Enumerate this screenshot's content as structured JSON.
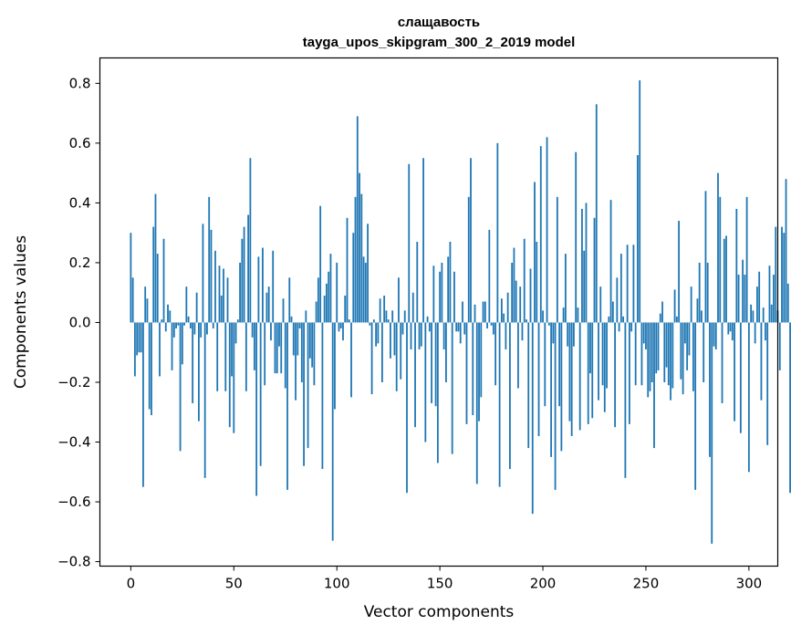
{
  "chart_data": {
    "type": "bar",
    "title": "слащавость",
    "subtitle": "tayga_upos_skipgram_300_2_2019 model",
    "xlabel": "Vector components",
    "ylabel": "Components values",
    "xlim": [
      -15,
      314
    ],
    "ylim": [
      -0.815,
      0.885
    ],
    "xticks": [
      0,
      50,
      100,
      150,
      200,
      250,
      300
    ],
    "yticks": [
      -0.8,
      -0.6,
      -0.4,
      -0.2,
      0.0,
      0.2,
      0.4,
      0.6,
      0.8
    ],
    "ytick_labels": [
      "−0.8",
      "−0.6",
      "−0.4",
      "−0.2",
      "0.0",
      "0.2",
      "0.4",
      "0.6",
      "0.8"
    ],
    "xtick_labels": [
      "0",
      "50",
      "100",
      "150",
      "200",
      "250",
      "300"
    ],
    "bar_color": "#1f77b4",
    "values": [
      0.3,
      0.15,
      -0.18,
      -0.11,
      -0.1,
      -0.1,
      -0.55,
      0.12,
      0.08,
      -0.29,
      -0.31,
      0.32,
      0.43,
      0.23,
      -0.18,
      0.01,
      0.28,
      -0.03,
      0.06,
      0.04,
      -0.16,
      -0.05,
      -0.02,
      -0.01,
      -0.43,
      -0.14,
      -0.01,
      0.12,
      0.02,
      -0.02,
      -0.27,
      -0.04,
      0.1,
      -0.33,
      -0.05,
      0.33,
      -0.52,
      -0.04,
      0.42,
      0.31,
      -0.02,
      0.24,
      -0.23,
      0.19,
      0.09,
      0.18,
      -0.23,
      0.15,
      -0.35,
      -0.18,
      -0.37,
      -0.07,
      0.01,
      0.2,
      0.28,
      0.32,
      -0.23,
      0.36,
      0.55,
      -0.05,
      -0.16,
      -0.58,
      0.22,
      -0.48,
      0.25,
      -0.21,
      0.1,
      0.12,
      -0.06,
      0.24,
      -0.17,
      -0.17,
      -0.08,
      -0.17,
      0.08,
      -0.22,
      -0.56,
      0.15,
      0.02,
      -0.11,
      -0.26,
      -0.11,
      -0.02,
      -0.2,
      -0.48,
      0.04,
      -0.42,
      -0.12,
      -0.15,
      -0.21,
      0.07,
      0.15,
      0.39,
      -0.49,
      0.09,
      0.13,
      0.17,
      0.23,
      -0.73,
      -0.29,
      0.2,
      -0.03,
      -0.02,
      -0.06,
      0.09,
      0.35,
      0.01,
      -0.25,
      0.3,
      0.42,
      0.69,
      0.5,
      0.43,
      0.22,
      0.2,
      0.33,
      -0.01,
      -0.24,
      0.01,
      -0.08,
      -0.07,
      0.08,
      -0.2,
      0.09,
      0.04,
      0.01,
      -0.12,
      0.04,
      -0.11,
      -0.23,
      0.15,
      -0.19,
      -0.04,
      0.04,
      -0.57,
      0.53,
      -0.09,
      0.1,
      -0.35,
      0.27,
      -0.09,
      -0.08,
      0.55,
      -0.4,
      0.02,
      -0.03,
      -0.27,
      0.19,
      -0.28,
      -0.47,
      0.17,
      0.2,
      -0.09,
      -0.2,
      0.22,
      0.27,
      -0.44,
      0.17,
      -0.03,
      -0.03,
      -0.07,
      0.07,
      -0.04,
      -0.34,
      0.42,
      0.55,
      -0.31,
      0.06,
      -0.54,
      -0.33,
      -0.25,
      0.07,
      0.07,
      -0.02,
      0.31,
      -0.01,
      -0.04,
      -0.21,
      0.6,
      -0.55,
      0.08,
      0.03,
      -0.09,
      0.1,
      -0.49,
      0.2,
      0.25,
      0.14,
      -0.22,
      0.12,
      -0.06,
      0.28,
      0.01,
      -0.42,
      0.18,
      -0.64,
      0.47,
      0.27,
      -0.38,
      0.59,
      0.04,
      -0.28,
      0.62,
      -0.01,
      -0.45,
      -0.07,
      -0.56,
      0.42,
      -0.28,
      -0.43,
      0.05,
      0.23,
      -0.08,
      -0.33,
      -0.38,
      -0.08,
      0.57,
      0.05,
      -0.36,
      0.38,
      0.24,
      0.4,
      -0.34,
      -0.17,
      -0.32,
      0.35,
      0.73,
      -0.26,
      0.12,
      -0.21,
      -0.3,
      -0.22,
      0.02,
      0.41,
      0.07,
      -0.35,
      0.15,
      -0.03,
      0.23,
      0.02,
      -0.52,
      0.26,
      -0.34,
      -0.03,
      0.26,
      -0.21,
      0.56,
      0.81,
      -0.21,
      -0.07,
      -0.09,
      -0.25,
      -0.23,
      -0.2,
      -0.42,
      -0.17,
      -0.16,
      0.03,
      0.07,
      -0.2,
      -0.15,
      -0.21,
      -0.26,
      -0.22,
      0.11,
      0.02,
      0.34,
      -0.19,
      -0.24,
      -0.07,
      -0.16,
      -0.11,
      0.12,
      -0.23,
      -0.56,
      0.08,
      0.2,
      0.04,
      -0.2,
      0.44,
      0.2,
      -0.45,
      -0.74,
      -0.08,
      -0.09,
      0.5,
      0.42,
      -0.27,
      0.28,
      0.29,
      -0.04,
      -0.03,
      -0.06,
      -0.33,
      0.38,
      0.16,
      -0.37,
      0.21,
      0.16,
      0.42,
      -0.5,
      0.06,
      0.04,
      -0.07,
      0.12,
      0.17,
      -0.26,
      0.05,
      -0.06,
      -0.41,
      0.19,
      0.06,
      0.16,
      0.32,
      0.04,
      -0.16,
      0.32,
      0.3,
      0.48,
      0.13,
      -0.57
    ]
  }
}
